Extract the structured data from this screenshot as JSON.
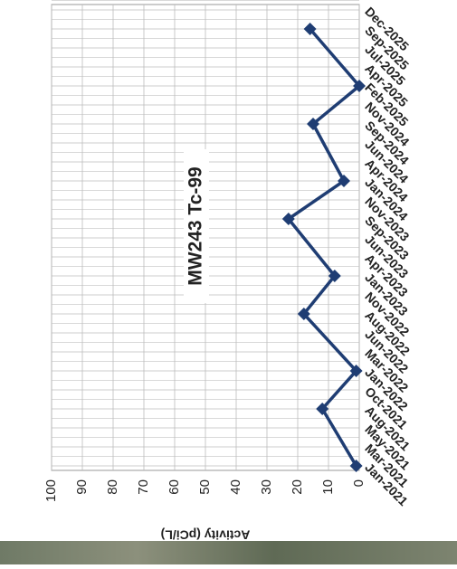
{
  "chart_data": {
    "type": "line",
    "title": "MW243 Tc-99",
    "y_label": "Activity (pCi/L)",
    "categories": [
      "Jan-2021",
      "Mar-2021",
      "May-2021",
      "Aug-2021",
      "Oct-2021",
      "Jan-2022",
      "Mar-2022",
      "Jun-2022",
      "Aug-2022",
      "Nov-2022",
      "Jan-2023",
      "Apr-2023",
      "Jun-2023",
      "Sep-2023",
      "Nov-2023",
      "Jan-2024",
      "Apr-2024",
      "Jun-2024",
      "Sep-2024",
      "Nov-2024",
      "Feb-2025",
      "Apr-2025",
      "Jul-2025",
      "Sep-2025",
      "Dec-2025"
    ],
    "series": [
      {
        "color": "#1f3d73",
        "x": [
          "Jan-2021",
          "Aug-2021",
          "Jan-2022",
          "Aug-2022",
          "Jan-2023",
          "Sep-2023",
          "Jan-2024",
          "Sep-2024",
          "Feb-2025",
          "Sep-2025"
        ],
        "values": [
          1,
          12,
          1,
          18,
          8,
          23,
          5,
          15,
          0,
          16
        ]
      }
    ],
    "ylim": [
      0,
      100
    ],
    "yticks": [
      0,
      10,
      20,
      30,
      40,
      50,
      60,
      70,
      80,
      90,
      100
    ],
    "grid": true
  }
}
